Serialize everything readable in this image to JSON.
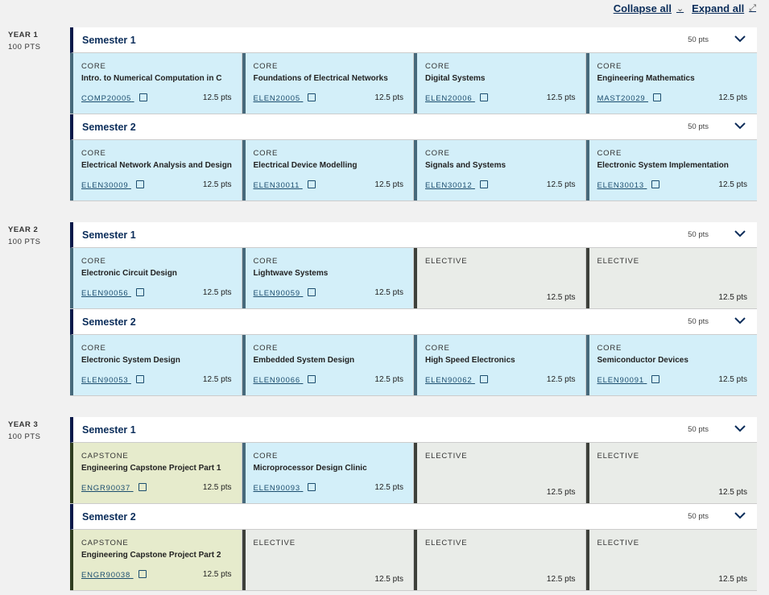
{
  "toolbar": {
    "collapse_all": "Collapse all",
    "expand_all": "Expand all"
  },
  "years": [
    {
      "label": "YEAR 1",
      "points": "100 PTS",
      "semesters": [
        {
          "title": "Semester 1",
          "points": "50 pts",
          "subjects": [
            {
              "type": "CORE",
              "kind": "core",
              "title": "Intro. to Numerical Computation in C",
              "code": "COMP20005",
              "points": "12.5 pts"
            },
            {
              "type": "CORE",
              "kind": "core",
              "title": "Foundations of Electrical Networks",
              "code": "ELEN20005",
              "points": "12.5 pts"
            },
            {
              "type": "CORE",
              "kind": "core",
              "title": "Digital Systems",
              "code": "ELEN20006",
              "points": "12.5 pts"
            },
            {
              "type": "CORE",
              "kind": "core",
              "title": "Engineering Mathematics",
              "code": "MAST20029",
              "points": "12.5 pts"
            }
          ]
        },
        {
          "title": "Semester 2",
          "points": "50 pts",
          "subjects": [
            {
              "type": "CORE",
              "kind": "core",
              "title": "Electrical Network Analysis and Design",
              "code": "ELEN30009",
              "points": "12.5 pts"
            },
            {
              "type": "CORE",
              "kind": "core",
              "title": "Electrical Device Modelling",
              "code": "ELEN30011",
              "points": "12.5 pts"
            },
            {
              "type": "CORE",
              "kind": "core",
              "title": "Signals and Systems",
              "code": "ELEN30012",
              "points": "12.5 pts"
            },
            {
              "type": "CORE",
              "kind": "core",
              "title": "Electronic System Implementation",
              "code": "ELEN30013",
              "points": "12.5 pts"
            }
          ]
        }
      ]
    },
    {
      "label": "YEAR 2",
      "points": "100 PTS",
      "semesters": [
        {
          "title": "Semester 1",
          "points": "50 pts",
          "subjects": [
            {
              "type": "CORE",
              "kind": "core",
              "title": "Electronic Circuit Design",
              "code": "ELEN90056",
              "points": "12.5 pts"
            },
            {
              "type": "CORE",
              "kind": "core",
              "title": "Lightwave Systems",
              "code": "ELEN90059",
              "points": "12.5 pts"
            },
            {
              "type": "ELECTIVE",
              "kind": "elective",
              "points": "12.5 pts"
            },
            {
              "type": "ELECTIVE",
              "kind": "elective",
              "points": "12.5 pts"
            }
          ]
        },
        {
          "title": "Semester 2",
          "points": "50 pts",
          "subjects": [
            {
              "type": "CORE",
              "kind": "core",
              "title": "Electronic System Design",
              "code": "ELEN90053",
              "points": "12.5 pts"
            },
            {
              "type": "CORE",
              "kind": "core",
              "title": "Embedded System Design",
              "code": "ELEN90066",
              "points": "12.5 pts"
            },
            {
              "type": "CORE",
              "kind": "core",
              "title": "High Speed Electronics",
              "code": "ELEN90062",
              "points": "12.5 pts"
            },
            {
              "type": "CORE",
              "kind": "core",
              "title": "Semiconductor Devices",
              "code": "ELEN90091",
              "points": "12.5 pts"
            }
          ]
        }
      ]
    },
    {
      "label": "YEAR 3",
      "points": "100 PTS",
      "semesters": [
        {
          "title": "Semester 1",
          "points": "50 pts",
          "subjects": [
            {
              "type": "CAPSTONE",
              "kind": "capstone",
              "title": "Engineering Capstone Project Part 1",
              "code": "ENGR90037",
              "points": "12.5 pts"
            },
            {
              "type": "CORE",
              "kind": "core",
              "title": "Microprocessor Design Clinic",
              "code": "ELEN90093",
              "points": "12.5 pts"
            },
            {
              "type": "ELECTIVE",
              "kind": "elective",
              "points": "12.5 pts"
            },
            {
              "type": "ELECTIVE",
              "kind": "elective",
              "points": "12.5 pts"
            }
          ]
        },
        {
          "title": "Semester 2",
          "points": "50 pts",
          "subjects": [
            {
              "type": "CAPSTONE",
              "kind": "capstone",
              "title": "Engineering Capstone Project Part 2",
              "code": "ENGR90038",
              "points": "12.5 pts"
            },
            {
              "type": "ELECTIVE",
              "kind": "elective",
              "points": "12.5 pts"
            },
            {
              "type": "ELECTIVE",
              "kind": "elective",
              "points": "12.5 pts"
            },
            {
              "type": "ELECTIVE",
              "kind": "elective",
              "points": "12.5 pts"
            }
          ]
        }
      ]
    }
  ]
}
